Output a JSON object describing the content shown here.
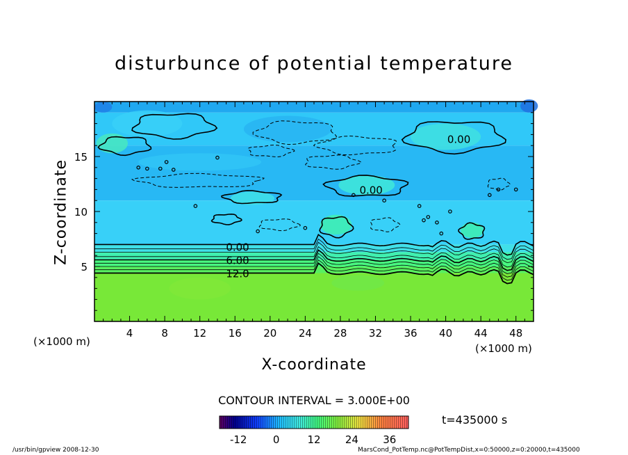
{
  "chart_data": {
    "type": "heatmap",
    "title": "disturbunce of potential temperature",
    "xlabel": "X-coordinate",
    "ylabel": "Z-coordinate",
    "x_unit_left": "(×1000 m)",
    "x_unit_right": "(×1000 m)",
    "xlim": [
      0,
      50
    ],
    "ylim": [
      0,
      20
    ],
    "x_ticks": [
      "4",
      "8",
      "12",
      "16",
      "20",
      "24",
      "28",
      "32",
      "36",
      "40",
      "44",
      "48"
    ],
    "x_tick_values": [
      4,
      8,
      12,
      16,
      20,
      24,
      28,
      32,
      36,
      40,
      44,
      48
    ],
    "y_ticks": [
      "5",
      "10",
      "15"
    ],
    "y_tick_values": [
      5,
      10,
      15
    ],
    "contour_interval": "CONTOUR INTERVAL = 3.000E+00",
    "time": "t=435000 s",
    "colorbar": {
      "min": -18,
      "max": 42,
      "ticks": [
        "-12",
        "0",
        "12",
        "24",
        "36"
      ],
      "tick_values": [
        -12,
        0,
        12,
        24,
        36
      ]
    },
    "contour_labels": [
      {
        "text": "0.00",
        "x": 16.3,
        "z": 6.8
      },
      {
        "text": "6.00",
        "x": 16.3,
        "z": 5.6
      },
      {
        "text": "12.0",
        "x": 16.3,
        "z": 4.4
      },
      {
        "text": "0.00",
        "x": 41.5,
        "z": 16.6
      },
      {
        "text": "0.00",
        "x": 31.5,
        "z": 12.0
      }
    ],
    "layers": [
      {
        "z_top": 20.0,
        "value": -6,
        "color": "#20a8f0"
      },
      {
        "z_top": 19.0,
        "value": -3,
        "color": "#30c8f8"
      },
      {
        "z_top": 16.0,
        "value": -4,
        "color": "#28b8f4"
      },
      {
        "z_top": 11.0,
        "value": -2,
        "color": "#38d0f8"
      },
      {
        "z_top": 7.0,
        "value": 0,
        "color": "#40e0e8"
      },
      {
        "z_top": 6.3,
        "value": 5,
        "color": "#40f0b0"
      },
      {
        "z_top": 5.6,
        "value": 9,
        "color": "#48f880"
      },
      {
        "z_top": 5.0,
        "value": 11,
        "color": "#58f060"
      },
      {
        "z_top": 4.4,
        "value": 14,
        "color": "#78e838"
      }
    ]
  },
  "footer": {
    "left": "/usr/bin/gpview   2008-12-30",
    "right": "MarsCond_PotTemp.nc@PotTempDist,x=0:50000,z=0:20000,t=435000"
  }
}
